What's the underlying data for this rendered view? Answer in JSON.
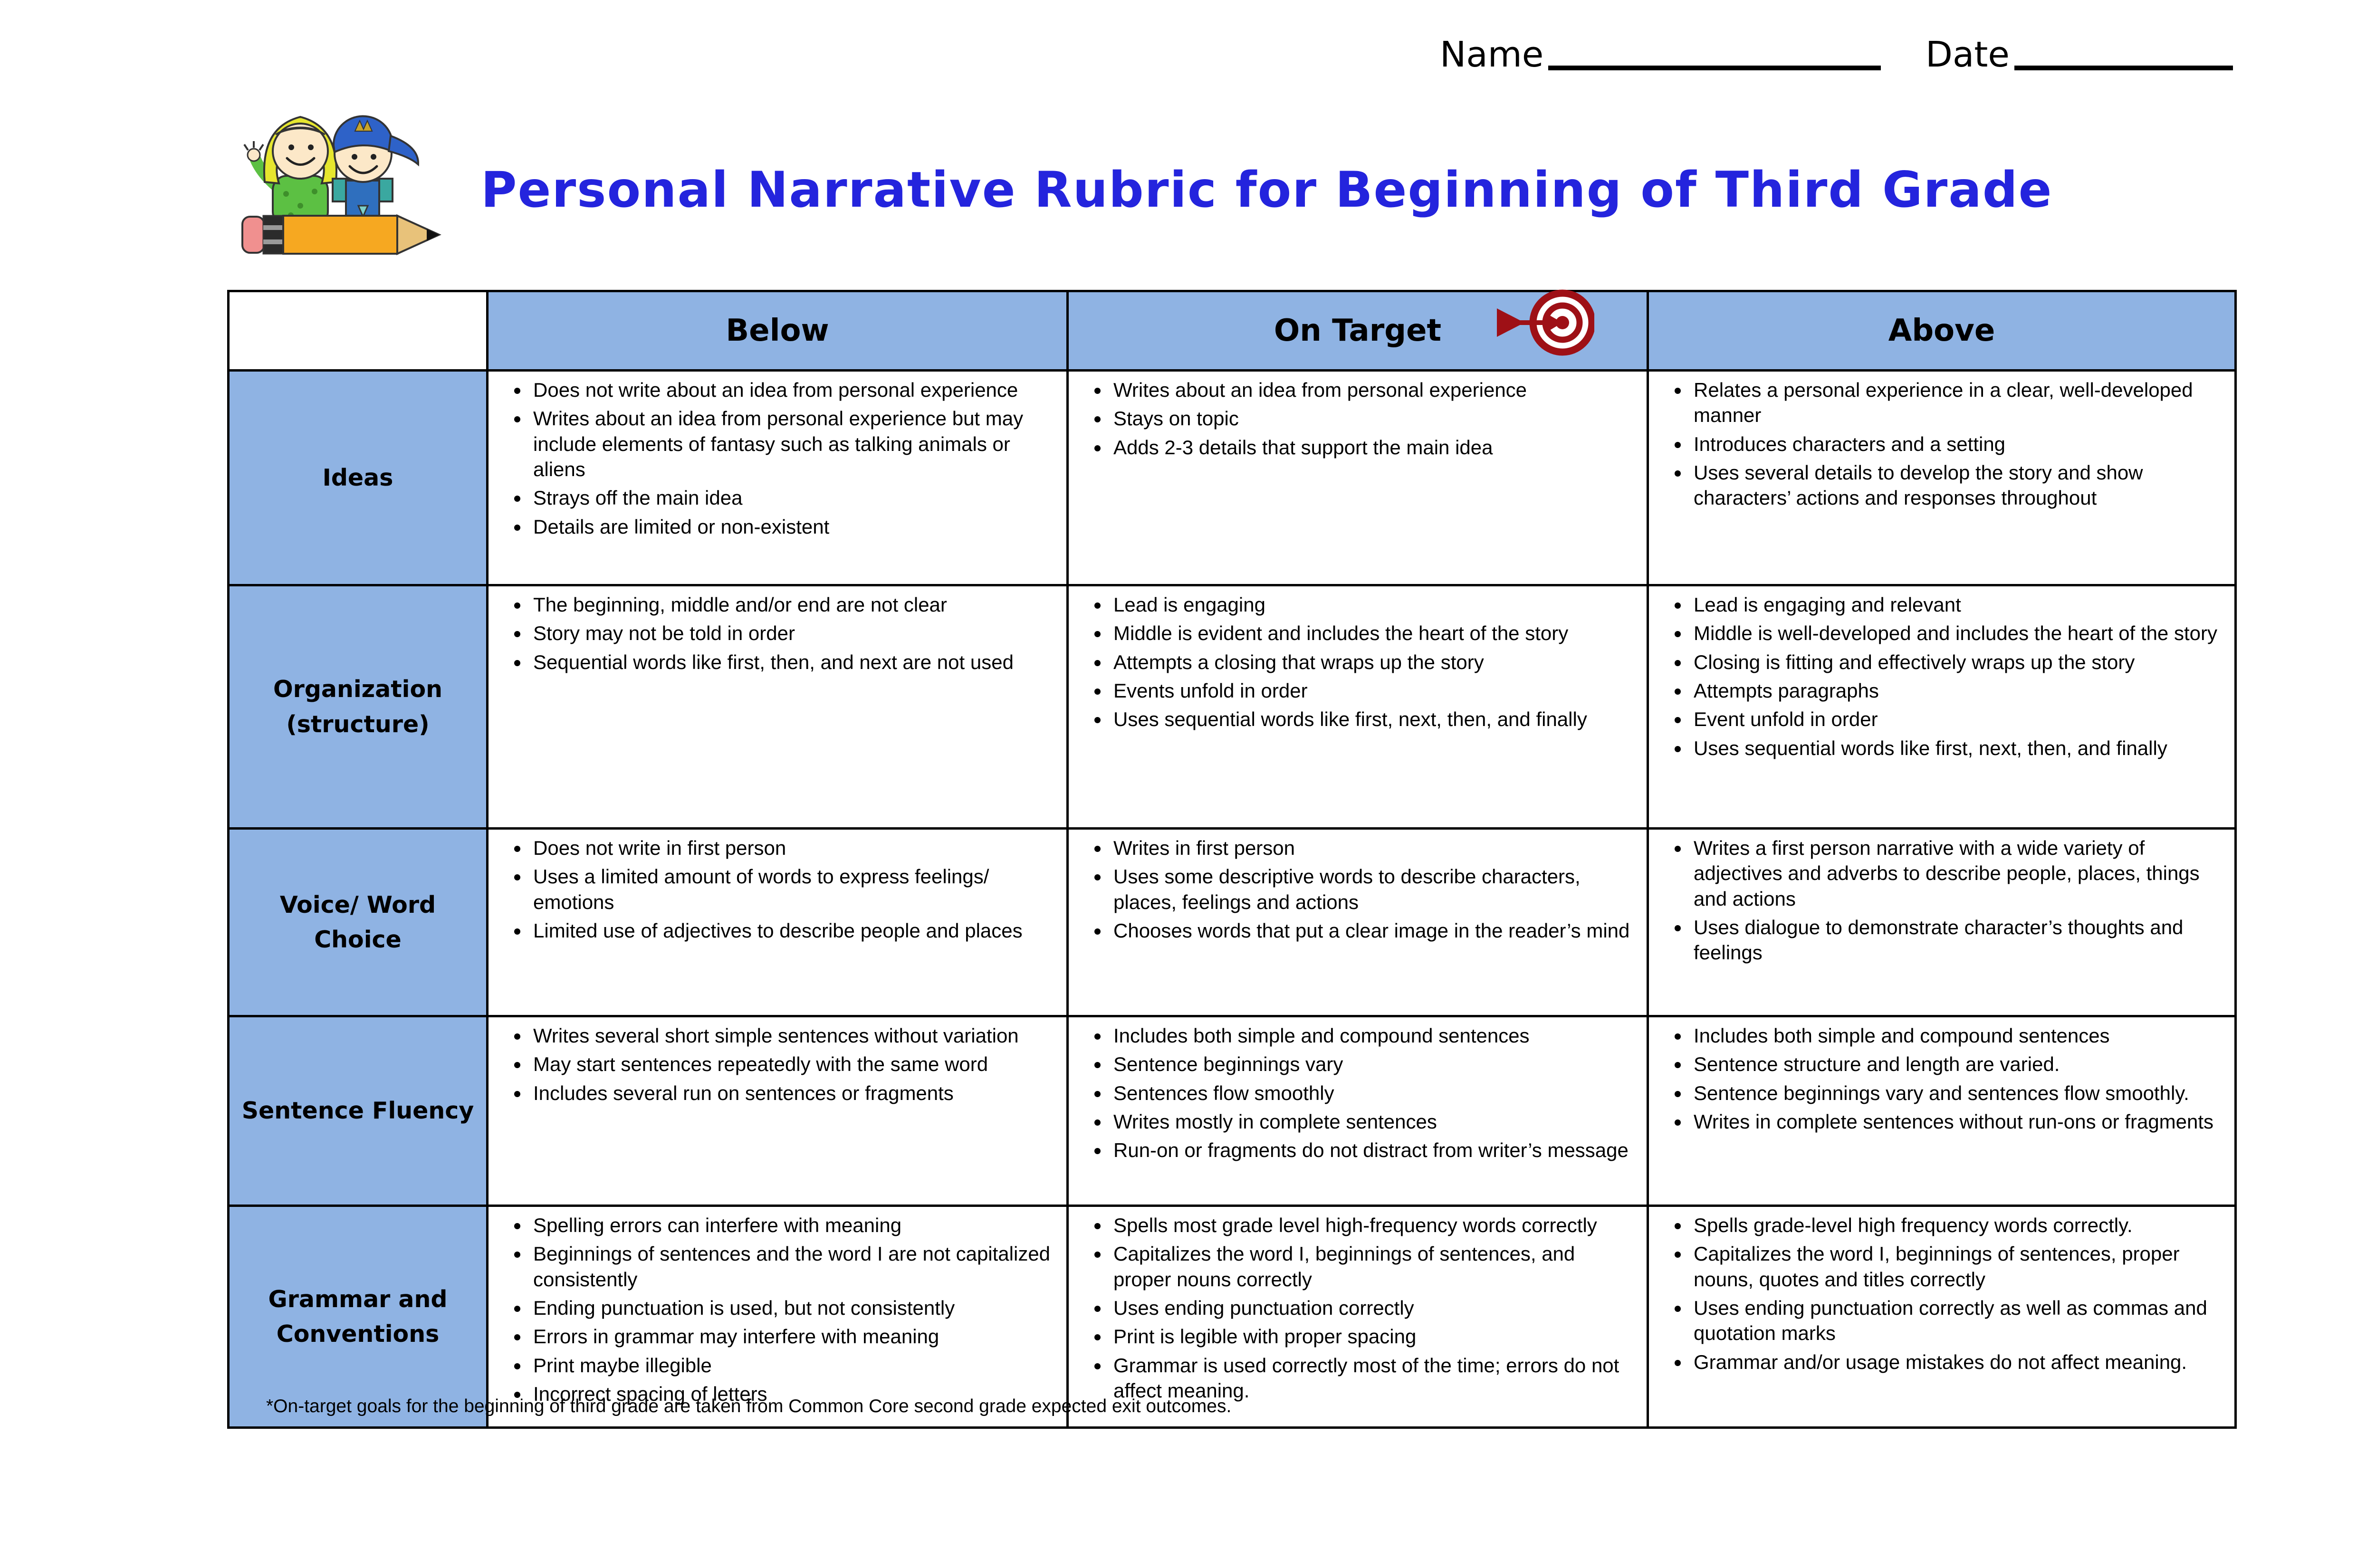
{
  "header": {
    "name_label": "Name",
    "date_label": "Date"
  },
  "title": "Personal Narrative Rubric for Beginning of Third Grade",
  "icons": {
    "clipart": "two-kids-with-pencil-clipart",
    "target": "bullseye-with-arrow-icon"
  },
  "colors": {
    "title_blue": "#2424DD",
    "header_blue": "#8FB3E3",
    "target_red": "#9E1016"
  },
  "table": {
    "columns": [
      "Below",
      "On Target",
      "Above"
    ],
    "rows": [
      {
        "label": "Ideas",
        "below": [
          "Does not write about an idea from personal experience",
          "Writes about an idea from personal experience but may include elements of fantasy such as talking animals or aliens",
          "Strays off the main idea",
          "Details are limited or non-existent"
        ],
        "on_target": [
          "Writes about an idea from personal experience",
          "Stays on topic",
          "Adds 2-3 details that support the main idea"
        ],
        "above": [
          "Relates a personal experience in a clear, well-developed manner",
          "Introduces characters and a setting",
          "Uses several details to develop the story and show characters’ actions and responses throughout"
        ]
      },
      {
        "label": "Organization (structure)",
        "below": [
          "The beginning, middle and/or end are not clear",
          "Story may not be told in order",
          "Sequential words like first, then, and next are not used"
        ],
        "on_target": [
          "Lead is engaging",
          "Middle is evident and includes the heart of the story",
          "Attempts a closing that wraps up the story",
          "Events unfold in order",
          "Uses sequential words like first, next, then, and finally"
        ],
        "above": [
          "Lead is engaging and relevant",
          "Middle is well-developed and includes the heart of the story",
          "Closing is fitting and effectively wraps up the story",
          "Attempts paragraphs",
          "Event unfold in order",
          "Uses sequential words like first, next, then, and finally"
        ]
      },
      {
        "label": "Voice/ Word Choice",
        "below": [
          "Does not write in first person",
          "Uses a limited amount of words to express feelings/ emotions",
          "Limited use of adjectives to describe people and places"
        ],
        "on_target": [
          "Writes in first person",
          "Uses some descriptive words to describe characters, places, feelings and actions",
          "Chooses words that put a clear image in the reader’s mind"
        ],
        "above": [
          "Writes a first person narrative with a wide variety of adjectives and adverbs to describe people, places, things and actions",
          "Uses dialogue to demonstrate character’s thoughts and feelings"
        ]
      },
      {
        "label": "Sentence Fluency",
        "below": [
          "Writes several short simple sentences without variation",
          "May start sentences repeatedly with the same word",
          "Includes several run on sentences or fragments"
        ],
        "on_target": [
          "Includes both simple and compound sentences",
          "Sentence beginnings vary",
          "Sentences flow smoothly",
          "Writes mostly in complete sentences",
          "Run-on or fragments do not distract from writer’s message"
        ],
        "above": [
          "Includes both simple and compound sentences",
          "Sentence structure and length are varied.",
          "Sentence beginnings vary and sentences flow smoothly.",
          "Writes in complete sentences without run-ons or fragments"
        ]
      },
      {
        "label": "Grammar and Conventions",
        "below": [
          "Spelling errors can interfere with meaning",
          "Beginnings of sentences and the word I are not capitalized consistently",
          "Ending punctuation is used, but not consistently",
          "Errors in grammar may interfere with meaning",
          "Print maybe illegible",
          "Incorrect spacing of letters"
        ],
        "on_target": [
          "Spells most grade level high-frequency words correctly",
          "Capitalizes the word I, beginnings of sentences, and proper nouns correctly",
          "Uses ending punctuation correctly",
          "Print is legible with proper spacing",
          "Grammar is used correctly most of the time; errors do not affect meaning."
        ],
        "above": [
          "Spells grade-level high frequency words correctly.",
          "Capitalizes the word I, beginnings of sentences, proper nouns, quotes and titles correctly",
          "Uses ending punctuation correctly as well as commas and quotation marks",
          "Grammar and/or usage mistakes do not affect meaning."
        ]
      }
    ]
  },
  "footnote": "*On-target goals for the beginning of third grade are taken from Common Core second grade expected exit outcomes."
}
